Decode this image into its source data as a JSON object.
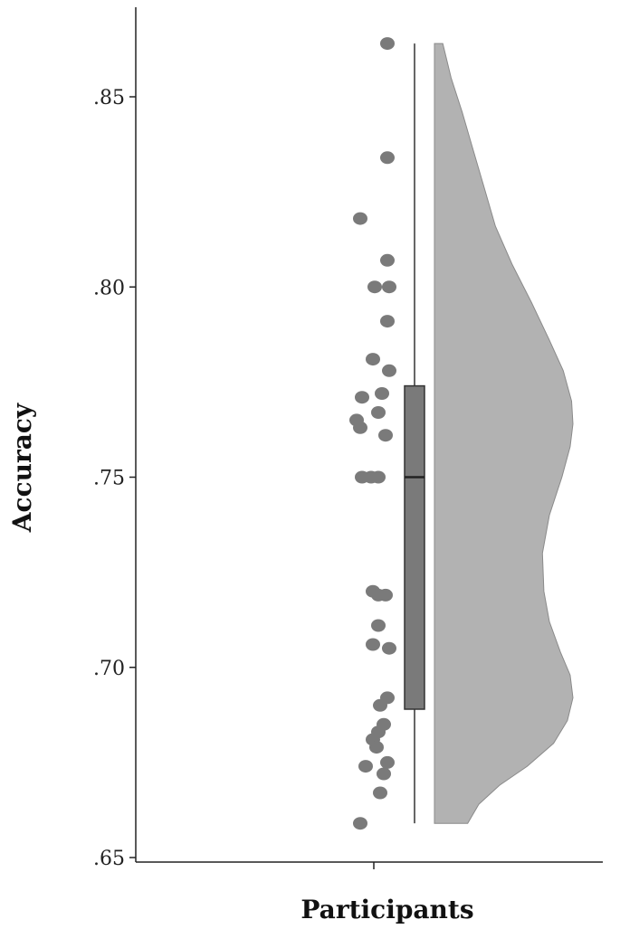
{
  "chart_data": {
    "type": "raincloud",
    "title": "",
    "xlabel": "Participants",
    "ylabel": "Accuracy",
    "ylim": [
      0.645,
      0.87
    ],
    "yticks": [
      ".65",
      ".70",
      ".75",
      ".80",
      ".85"
    ],
    "ytick_values": [
      0.65,
      0.7,
      0.75,
      0.8,
      0.85
    ],
    "grid": false,
    "colors": {
      "points": "#7a7a7a",
      "box": "#7a7a7a",
      "violin": "#b2b2b2",
      "axis": "#222222"
    },
    "box": {
      "min": 0.659,
      "q1": 0.689,
      "median": 0.75,
      "q3": 0.774,
      "max": 0.864
    },
    "points": [
      {
        "dx": 0.7,
        "y": 0.864
      },
      {
        "dx": 0.7,
        "y": 0.834
      },
      {
        "dx": -0.05,
        "y": 0.818
      },
      {
        "dx": 0.7,
        "y": 0.807
      },
      {
        "dx": 0.35,
        "y": 0.8
      },
      {
        "dx": 0.75,
        "y": 0.8
      },
      {
        "dx": 0.7,
        "y": 0.791
      },
      {
        "dx": 0.3,
        "y": 0.781
      },
      {
        "dx": 0.75,
        "y": 0.778
      },
      {
        "dx": 0.55,
        "y": 0.772
      },
      {
        "dx": 0.0,
        "y": 0.771
      },
      {
        "dx": 0.45,
        "y": 0.767
      },
      {
        "dx": -0.15,
        "y": 0.765
      },
      {
        "dx": -0.05,
        "y": 0.763
      },
      {
        "dx": 0.65,
        "y": 0.761
      },
      {
        "dx": 0.0,
        "y": 0.75
      },
      {
        "dx": 0.25,
        "y": 0.75
      },
      {
        "dx": 0.45,
        "y": 0.75
      },
      {
        "dx": 0.3,
        "y": 0.72
      },
      {
        "dx": 0.45,
        "y": 0.719
      },
      {
        "dx": 0.65,
        "y": 0.719
      },
      {
        "dx": 0.45,
        "y": 0.711
      },
      {
        "dx": 0.3,
        "y": 0.706
      },
      {
        "dx": 0.75,
        "y": 0.705
      },
      {
        "dx": 0.7,
        "y": 0.692
      },
      {
        "dx": 0.5,
        "y": 0.69
      },
      {
        "dx": 0.6,
        "y": 0.685
      },
      {
        "dx": 0.45,
        "y": 0.683
      },
      {
        "dx": 0.3,
        "y": 0.681
      },
      {
        "dx": 0.4,
        "y": 0.679
      },
      {
        "dx": 0.7,
        "y": 0.675
      },
      {
        "dx": 0.1,
        "y": 0.674
      },
      {
        "dx": 0.6,
        "y": 0.672
      },
      {
        "dx": 0.5,
        "y": 0.667
      },
      {
        "dx": -0.05,
        "y": 0.659
      }
    ],
    "density": [
      [
        0.659,
        0.24
      ],
      [
        0.664,
        0.32
      ],
      [
        0.669,
        0.47
      ],
      [
        0.674,
        0.67
      ],
      [
        0.68,
        0.86
      ],
      [
        0.686,
        0.96
      ],
      [
        0.692,
        1.0
      ],
      [
        0.698,
        0.98
      ],
      [
        0.704,
        0.91
      ],
      [
        0.712,
        0.83
      ],
      [
        0.72,
        0.79
      ],
      [
        0.73,
        0.78
      ],
      [
        0.74,
        0.83
      ],
      [
        0.75,
        0.92
      ],
      [
        0.758,
        0.98
      ],
      [
        0.764,
        1.0
      ],
      [
        0.77,
        0.99
      ],
      [
        0.778,
        0.93
      ],
      [
        0.786,
        0.83
      ],
      [
        0.796,
        0.7
      ],
      [
        0.806,
        0.56
      ],
      [
        0.816,
        0.44
      ],
      [
        0.826,
        0.36
      ],
      [
        0.836,
        0.28
      ],
      [
        0.846,
        0.2
      ],
      [
        0.855,
        0.12
      ],
      [
        0.864,
        0.06
      ]
    ]
  }
}
